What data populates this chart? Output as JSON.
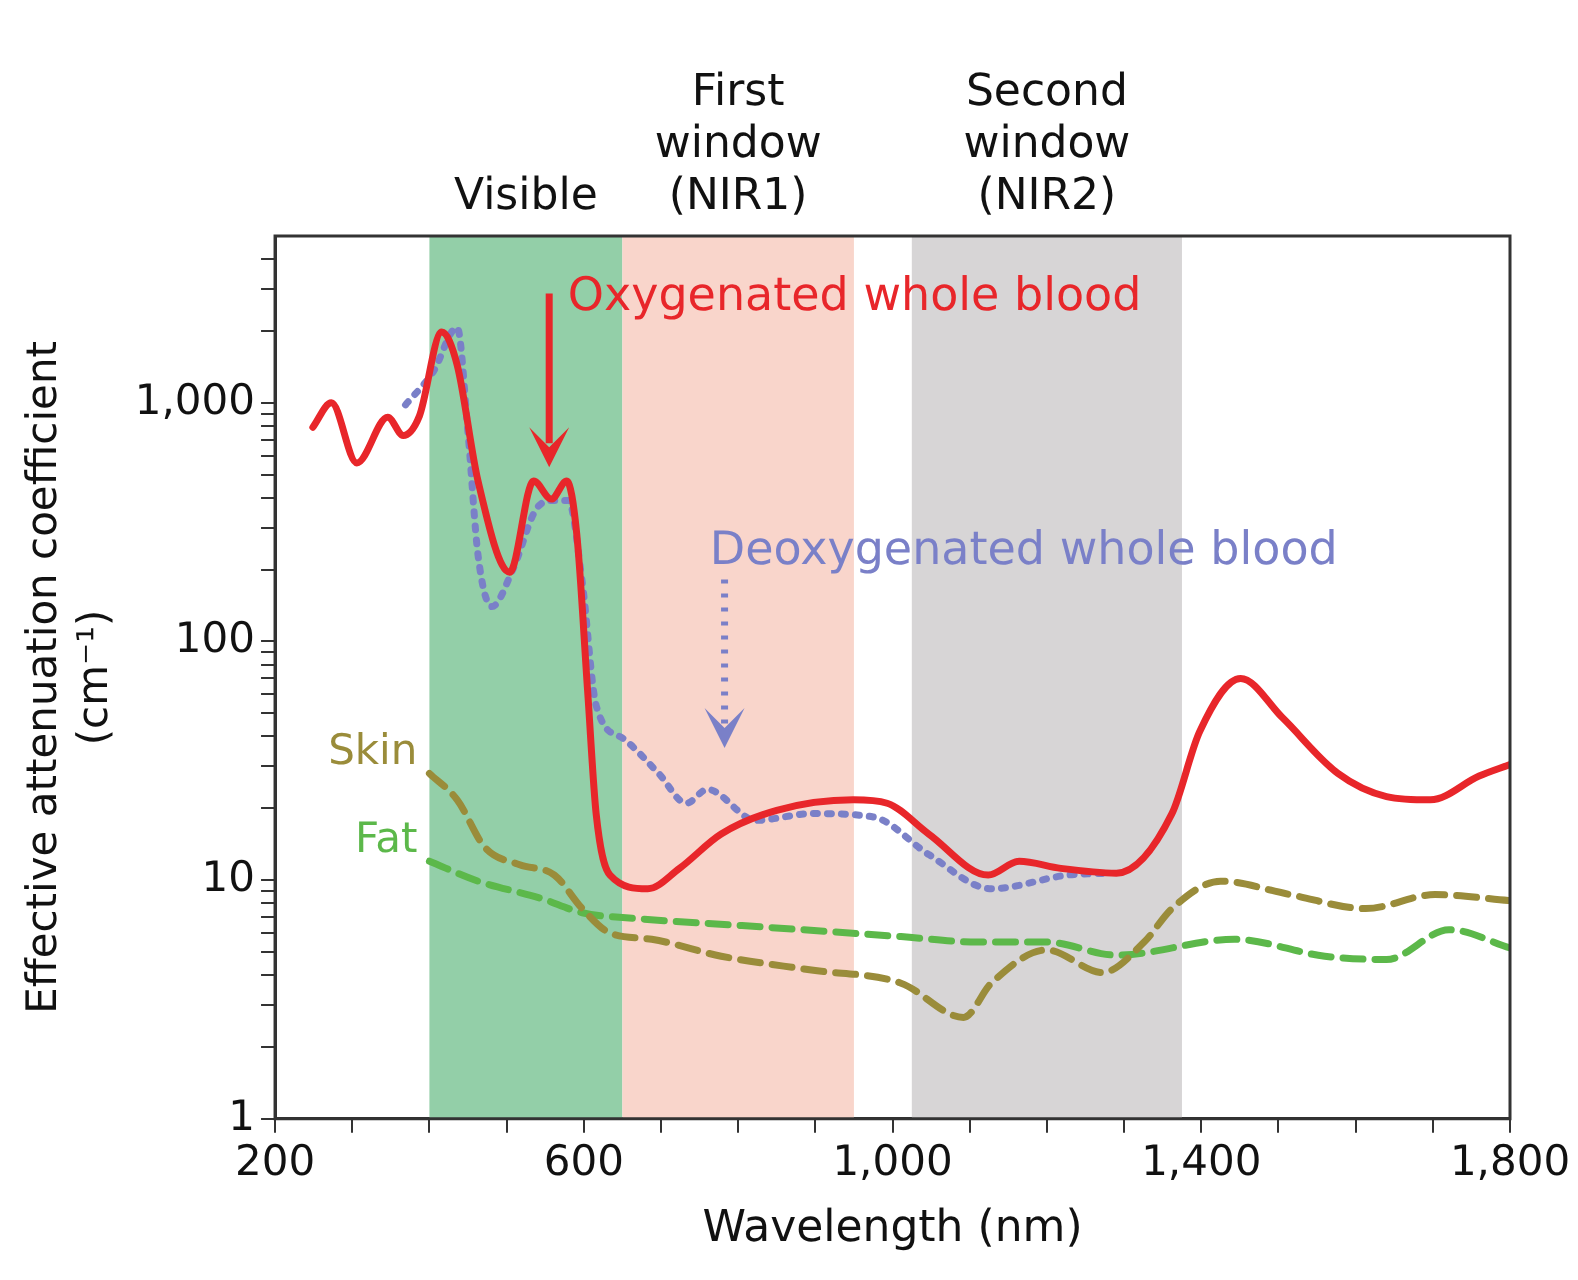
{
  "chart_data": {
    "type": "line",
    "xlabel": "Wavelength (nm)",
    "ylabel": "Effective attenuation coefficient (cm⁻¹)",
    "xlim": [
      200,
      1800
    ],
    "ylim": [
      1,
      5000
    ],
    "log": "y",
    "grid": false,
    "legend": false,
    "xticks": [
      200,
      {
        "value": 300,
        "label": null
      },
      {
        "value": 400,
        "label": null
      },
      {
        "value": 500,
        "label": null
      },
      600,
      {
        "value": 700,
        "label": null
      },
      {
        "value": 800,
        "label": null
      },
      {
        "value": 900,
        "label": null
      },
      {
        "value": 1000,
        "label": "1,000"
      },
      {
        "value": 1100,
        "label": null
      },
      {
        "value": 1200,
        "label": null
      },
      {
        "value": 1300,
        "label": null
      },
      {
        "value": 1400,
        "label": "1,400"
      },
      {
        "value": 1500,
        "label": null
      },
      {
        "value": 1600,
        "label": null
      },
      {
        "value": 1700,
        "label": null
      },
      {
        "value": 1800,
        "label": "1,800"
      }
    ],
    "yticks": [
      1,
      {
        "value": 2,
        "label": null
      },
      {
        "value": 3,
        "label": null
      },
      {
        "value": 4,
        "label": null
      },
      {
        "value": 5,
        "label": null
      },
      {
        "value": 6,
        "label": null
      },
      {
        "value": 7,
        "label": null
      },
      {
        "value": 8,
        "label": null
      },
      {
        "value": 9,
        "label": null
      },
      10,
      {
        "value": 20,
        "label": null
      },
      {
        "value": 30,
        "label": null
      },
      {
        "value": 40,
        "label": null
      },
      {
        "value": 50,
        "label": null
      },
      {
        "value": 60,
        "label": null
      },
      {
        "value": 70,
        "label": null
      },
      {
        "value": 80,
        "label": null
      },
      {
        "value": 90,
        "label": null
      },
      100,
      {
        "value": 200,
        "label": null
      },
      {
        "value": 300,
        "label": null
      },
      {
        "value": 400,
        "label": null
      },
      {
        "value": 500,
        "label": null
      },
      {
        "value": 600,
        "label": null
      },
      {
        "value": 700,
        "label": null
      },
      {
        "value": 800,
        "label": null
      },
      {
        "value": 900,
        "label": null
      },
      {
        "value": 1000,
        "label": "1,000"
      },
      {
        "value": 2000,
        "label": null
      },
      {
        "value": 3000,
        "label": null
      },
      {
        "value": 4000,
        "label": null
      }
    ],
    "bands": [
      {
        "axis": "x",
        "from": 400,
        "to": 650,
        "label": "Visible",
        "color": "#93cfa8"
      },
      {
        "axis": "x",
        "from": 650,
        "to": 950,
        "label": "First window (NIR1)",
        "color": "#f9d5cb"
      },
      {
        "axis": "x",
        "from": 1025,
        "to": 1375,
        "label": "Second window (NIR2)",
        "color": "#d7d5d6"
      }
    ],
    "annotations": [
      "Oxygenated whole blood",
      "Deoxygenated whole blood"
    ],
    "series": [
      {
        "color": "#e8262a",
        "line_style": "solid",
        "x": [
          249,
          273,
          306,
          346,
          366,
          387,
          416,
          436,
          463,
          504,
          535,
          558,
          578,
          591,
          605,
          616,
          634,
          683,
          724,
          778,
          850,
          949,
          993,
          1047,
          1124,
          1164,
          1218,
          1290,
          1362,
          1398,
          1451,
          1505,
          1577,
          1640,
          1697,
          1760,
          1800
        ],
        "values": [
          790,
          1000,
          560,
          870,
          730,
          880,
          1980,
          1440,
          470,
          195,
          470,
          395,
          470,
          280,
          62,
          19,
          10.5,
          9.2,
          11.2,
          15.6,
          19.6,
          21.7,
          21,
          15.6,
          10.5,
          12,
          11.2,
          10.7,
          19,
          42,
          70,
          48,
          28,
          22.4,
          21.7,
          27.3,
          30.5
        ]
      },
      {
        "color": "#7a80c8",
        "line_style": "dotted",
        "x": [
          369,
          405,
          436,
          450,
          463,
          481,
          508,
          540,
          562,
          580,
          598,
          616,
          652,
          697,
          733,
          760,
          823,
          895,
          975,
          1047,
          1128,
          1227,
          1281
        ],
        "values": [
          980,
          1350,
          2070,
          750,
          230,
          140,
          200,
          365,
          390,
          390,
          177,
          54,
          39,
          28,
          21,
          24,
          17.8,
          19,
          18.4,
          12.8,
          9.2,
          10.5,
          10.7
        ]
      },
      {
        "name": "Skin",
        "color": "#9a8c3a",
        "line_style": "dashed",
        "x": [
          400,
          436,
          472,
          517,
          562,
          598,
          634,
          688,
          778,
          895,
          1011,
          1092,
          1128,
          1200,
          1272,
          1326,
          1362,
          1425,
          1515,
          1613,
          1703,
          1800
        ],
        "values": [
          28,
          21.7,
          13.7,
          11.6,
          10.5,
          7.6,
          6,
          5.65,
          4.8,
          4.2,
          3.7,
          2.66,
          3.7,
          5.1,
          4.1,
          5.5,
          7.6,
          9.9,
          8.7,
          7.6,
          8.7,
          8.2
        ]
      },
      {
        "name": "Fat",
        "color": "#5cb84a",
        "line_style": "dashed",
        "x": [
          400,
          463,
          544,
          598,
          670,
          805,
          1011,
          1110,
          1200,
          1290,
          1443,
          1560,
          1640,
          1721,
          1800
        ],
        "values": [
          12,
          9.9,
          8.4,
          7.3,
          6.9,
          6.45,
          5.8,
          5.5,
          5.5,
          4.85,
          5.65,
          4.8,
          4.65,
          6.2,
          5.2
        ]
      }
    ]
  }
}
